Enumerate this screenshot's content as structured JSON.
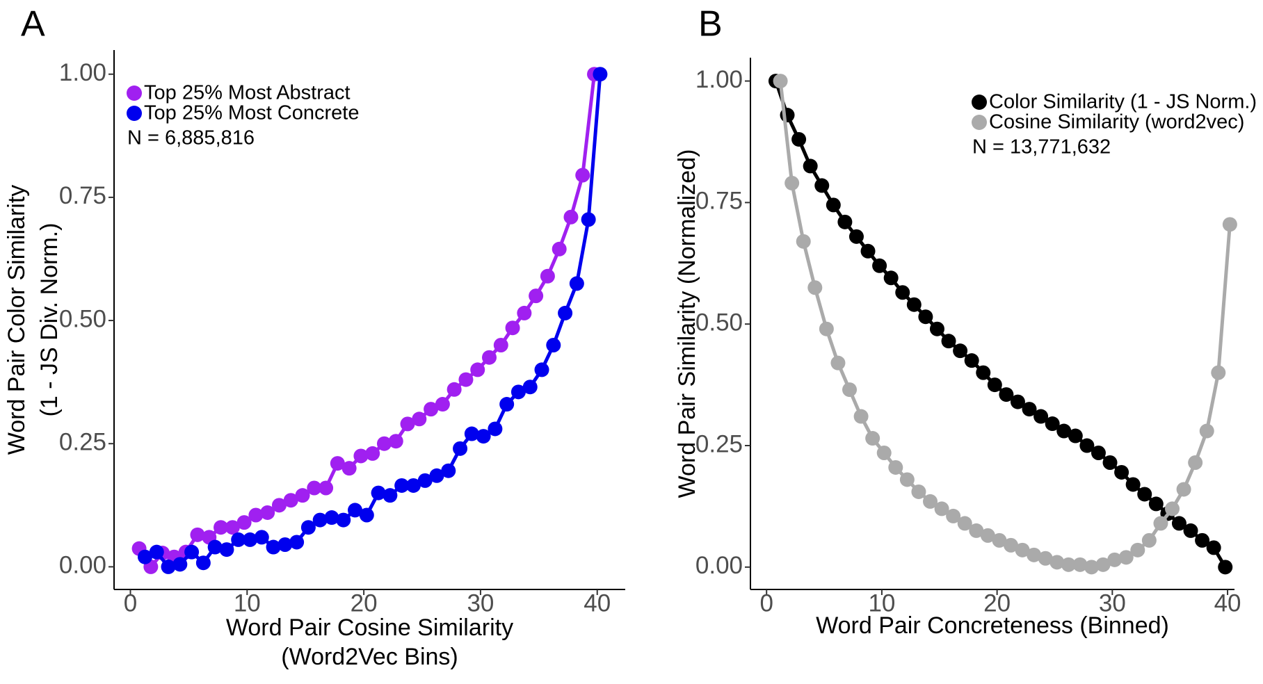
{
  "chart_data": [
    {
      "type": "line",
      "panel": "A",
      "xlabel": [
        "Word Pair Cosine Similarity",
        "(Word2Vec Bins)"
      ],
      "ylabel": [
        "Word Pair Color Similarity",
        "(1 - JS Div. Norm.)"
      ],
      "annotation": "N = 6,885,816",
      "legend": "top-left",
      "xlim": [
        -1.4,
        42.4
      ],
      "ylim": [
        -0.046,
        1.049
      ],
      "xticks": [
        0,
        10,
        20,
        30,
        40
      ],
      "yticks": [
        {
          "value": 0,
          "label": "0.00"
        },
        {
          "value": 0.25,
          "label": "0.25"
        },
        {
          "value": 0.5,
          "label": "0.50"
        },
        {
          "value": 0.75,
          "label": "0.75"
        },
        {
          "value": 1,
          "label": "1.00"
        }
      ],
      "series": [
        {
          "name": "Top 25% Most Abstract",
          "color": "#a020f0",
          "x": [
            0.75,
            1.75,
            2.75,
            3.75,
            4.75,
            5.75,
            6.75,
            7.75,
            8.75,
            9.75,
            10.75,
            11.75,
            12.75,
            13.75,
            14.75,
            15.75,
            16.75,
            17.75,
            18.75,
            19.75,
            20.75,
            21.75,
            22.75,
            23.75,
            24.75,
            25.75,
            26.75,
            27.75,
            28.75,
            29.75,
            30.75,
            31.75,
            32.75,
            33.75,
            34.75,
            35.75,
            36.75,
            37.75,
            38.75,
            39.75
          ],
          "values": [
            0.037,
            0.0,
            0.028,
            0.02,
            0.03,
            0.065,
            0.06,
            0.08,
            0.08,
            0.09,
            0.105,
            0.11,
            0.125,
            0.135,
            0.145,
            0.16,
            0.16,
            0.21,
            0.2,
            0.225,
            0.23,
            0.25,
            0.255,
            0.29,
            0.3,
            0.32,
            0.33,
            0.36,
            0.38,
            0.4,
            0.425,
            0.45,
            0.485,
            0.515,
            0.55,
            0.59,
            0.645,
            0.71,
            0.795,
            1.0
          ]
        },
        {
          "name": "Top 25% Most Concrete",
          "color": "#0000ee",
          "x": [
            1.25,
            2.25,
            3.25,
            4.25,
            5.25,
            6.25,
            7.25,
            8.25,
            9.25,
            10.25,
            11.25,
            12.25,
            13.25,
            14.25,
            15.25,
            16.25,
            17.25,
            18.25,
            19.25,
            20.25,
            21.25,
            22.25,
            23.25,
            24.25,
            25.25,
            26.25,
            27.25,
            28.25,
            29.25,
            30.25,
            31.25,
            32.25,
            33.25,
            34.25,
            35.25,
            36.25,
            37.25,
            38.25,
            39.25,
            40.25
          ],
          "values": [
            0.02,
            0.03,
            0.0,
            0.005,
            0.03,
            0.008,
            0.04,
            0.035,
            0.055,
            0.055,
            0.06,
            0.04,
            0.045,
            0.05,
            0.08,
            0.095,
            0.1,
            0.095,
            0.115,
            0.105,
            0.15,
            0.145,
            0.165,
            0.165,
            0.175,
            0.185,
            0.195,
            0.24,
            0.27,
            0.265,
            0.28,
            0.33,
            0.355,
            0.365,
            0.4,
            0.45,
            0.515,
            0.575,
            0.705,
            1.0
          ]
        }
      ]
    },
    {
      "type": "line",
      "panel": "B",
      "xlabel": [
        "Word Pair Concreteness (Binned)"
      ],
      "ylabel": [
        "Word Pair Similarity (Normalized)"
      ],
      "annotation": "N = 13,771,632",
      "legend": "top-right",
      "xlim": [
        -1.4,
        40.6
      ],
      "ylim": [
        -0.046,
        1.048
      ],
      "xticks": [
        0,
        10,
        20,
        30,
        40
      ],
      "yticks": [
        {
          "value": 0,
          "label": "0.00"
        },
        {
          "value": 0.25,
          "label": "0.25"
        },
        {
          "value": 0.5,
          "label": "0.50"
        },
        {
          "value": 0.75,
          "label": "0.75"
        },
        {
          "value": 1,
          "label": "1.00"
        }
      ],
      "series": [
        {
          "name": "Color Similarity (1 - JS Norm.)",
          "color": "#000000",
          "x": [
            0.8,
            1.8,
            2.8,
            3.8,
            4.8,
            5.8,
            6.8,
            7.8,
            8.8,
            9.8,
            10.8,
            11.8,
            12.8,
            13.8,
            14.8,
            15.8,
            16.8,
            17.8,
            18.8,
            19.8,
            20.8,
            21.8,
            22.8,
            23.8,
            24.8,
            25.8,
            26.8,
            27.8,
            28.8,
            29.8,
            30.8,
            31.8,
            32.8,
            33.8,
            34.8,
            35.8,
            36.8,
            37.8,
            38.8,
            39.8
          ],
          "values": [
            1.0,
            0.93,
            0.88,
            0.825,
            0.785,
            0.745,
            0.71,
            0.68,
            0.65,
            0.62,
            0.595,
            0.565,
            0.54,
            0.515,
            0.49,
            0.465,
            0.445,
            0.425,
            0.4,
            0.375,
            0.355,
            0.34,
            0.325,
            0.31,
            0.295,
            0.28,
            0.27,
            0.25,
            0.235,
            0.215,
            0.195,
            0.17,
            0.15,
            0.13,
            0.11,
            0.09,
            0.075,
            0.055,
            0.04,
            0.0
          ]
        },
        {
          "name": "Cosine Similarity (word2vec)",
          "color": "#aaaaaa",
          "x": [
            1.2,
            2.2,
            3.2,
            4.2,
            5.2,
            6.2,
            7.2,
            8.2,
            9.2,
            10.2,
            11.2,
            12.2,
            13.2,
            14.2,
            15.2,
            16.2,
            17.2,
            18.2,
            19.2,
            20.2,
            21.2,
            22.2,
            23.2,
            24.2,
            25.2,
            26.2,
            27.2,
            28.2,
            29.2,
            30.2,
            31.2,
            32.2,
            33.2,
            34.2,
            35.2,
            36.2,
            37.2,
            38.2,
            39.2,
            40.2
          ],
          "values": [
            1.0,
            0.79,
            0.67,
            0.575,
            0.49,
            0.42,
            0.365,
            0.31,
            0.265,
            0.235,
            0.205,
            0.18,
            0.155,
            0.135,
            0.12,
            0.105,
            0.09,
            0.075,
            0.065,
            0.055,
            0.045,
            0.035,
            0.025,
            0.018,
            0.01,
            0.005,
            0.005,
            0.0,
            0.005,
            0.015,
            0.02,
            0.035,
            0.055,
            0.09,
            0.12,
            0.16,
            0.215,
            0.28,
            0.4,
            0.705
          ]
        }
      ]
    }
  ]
}
